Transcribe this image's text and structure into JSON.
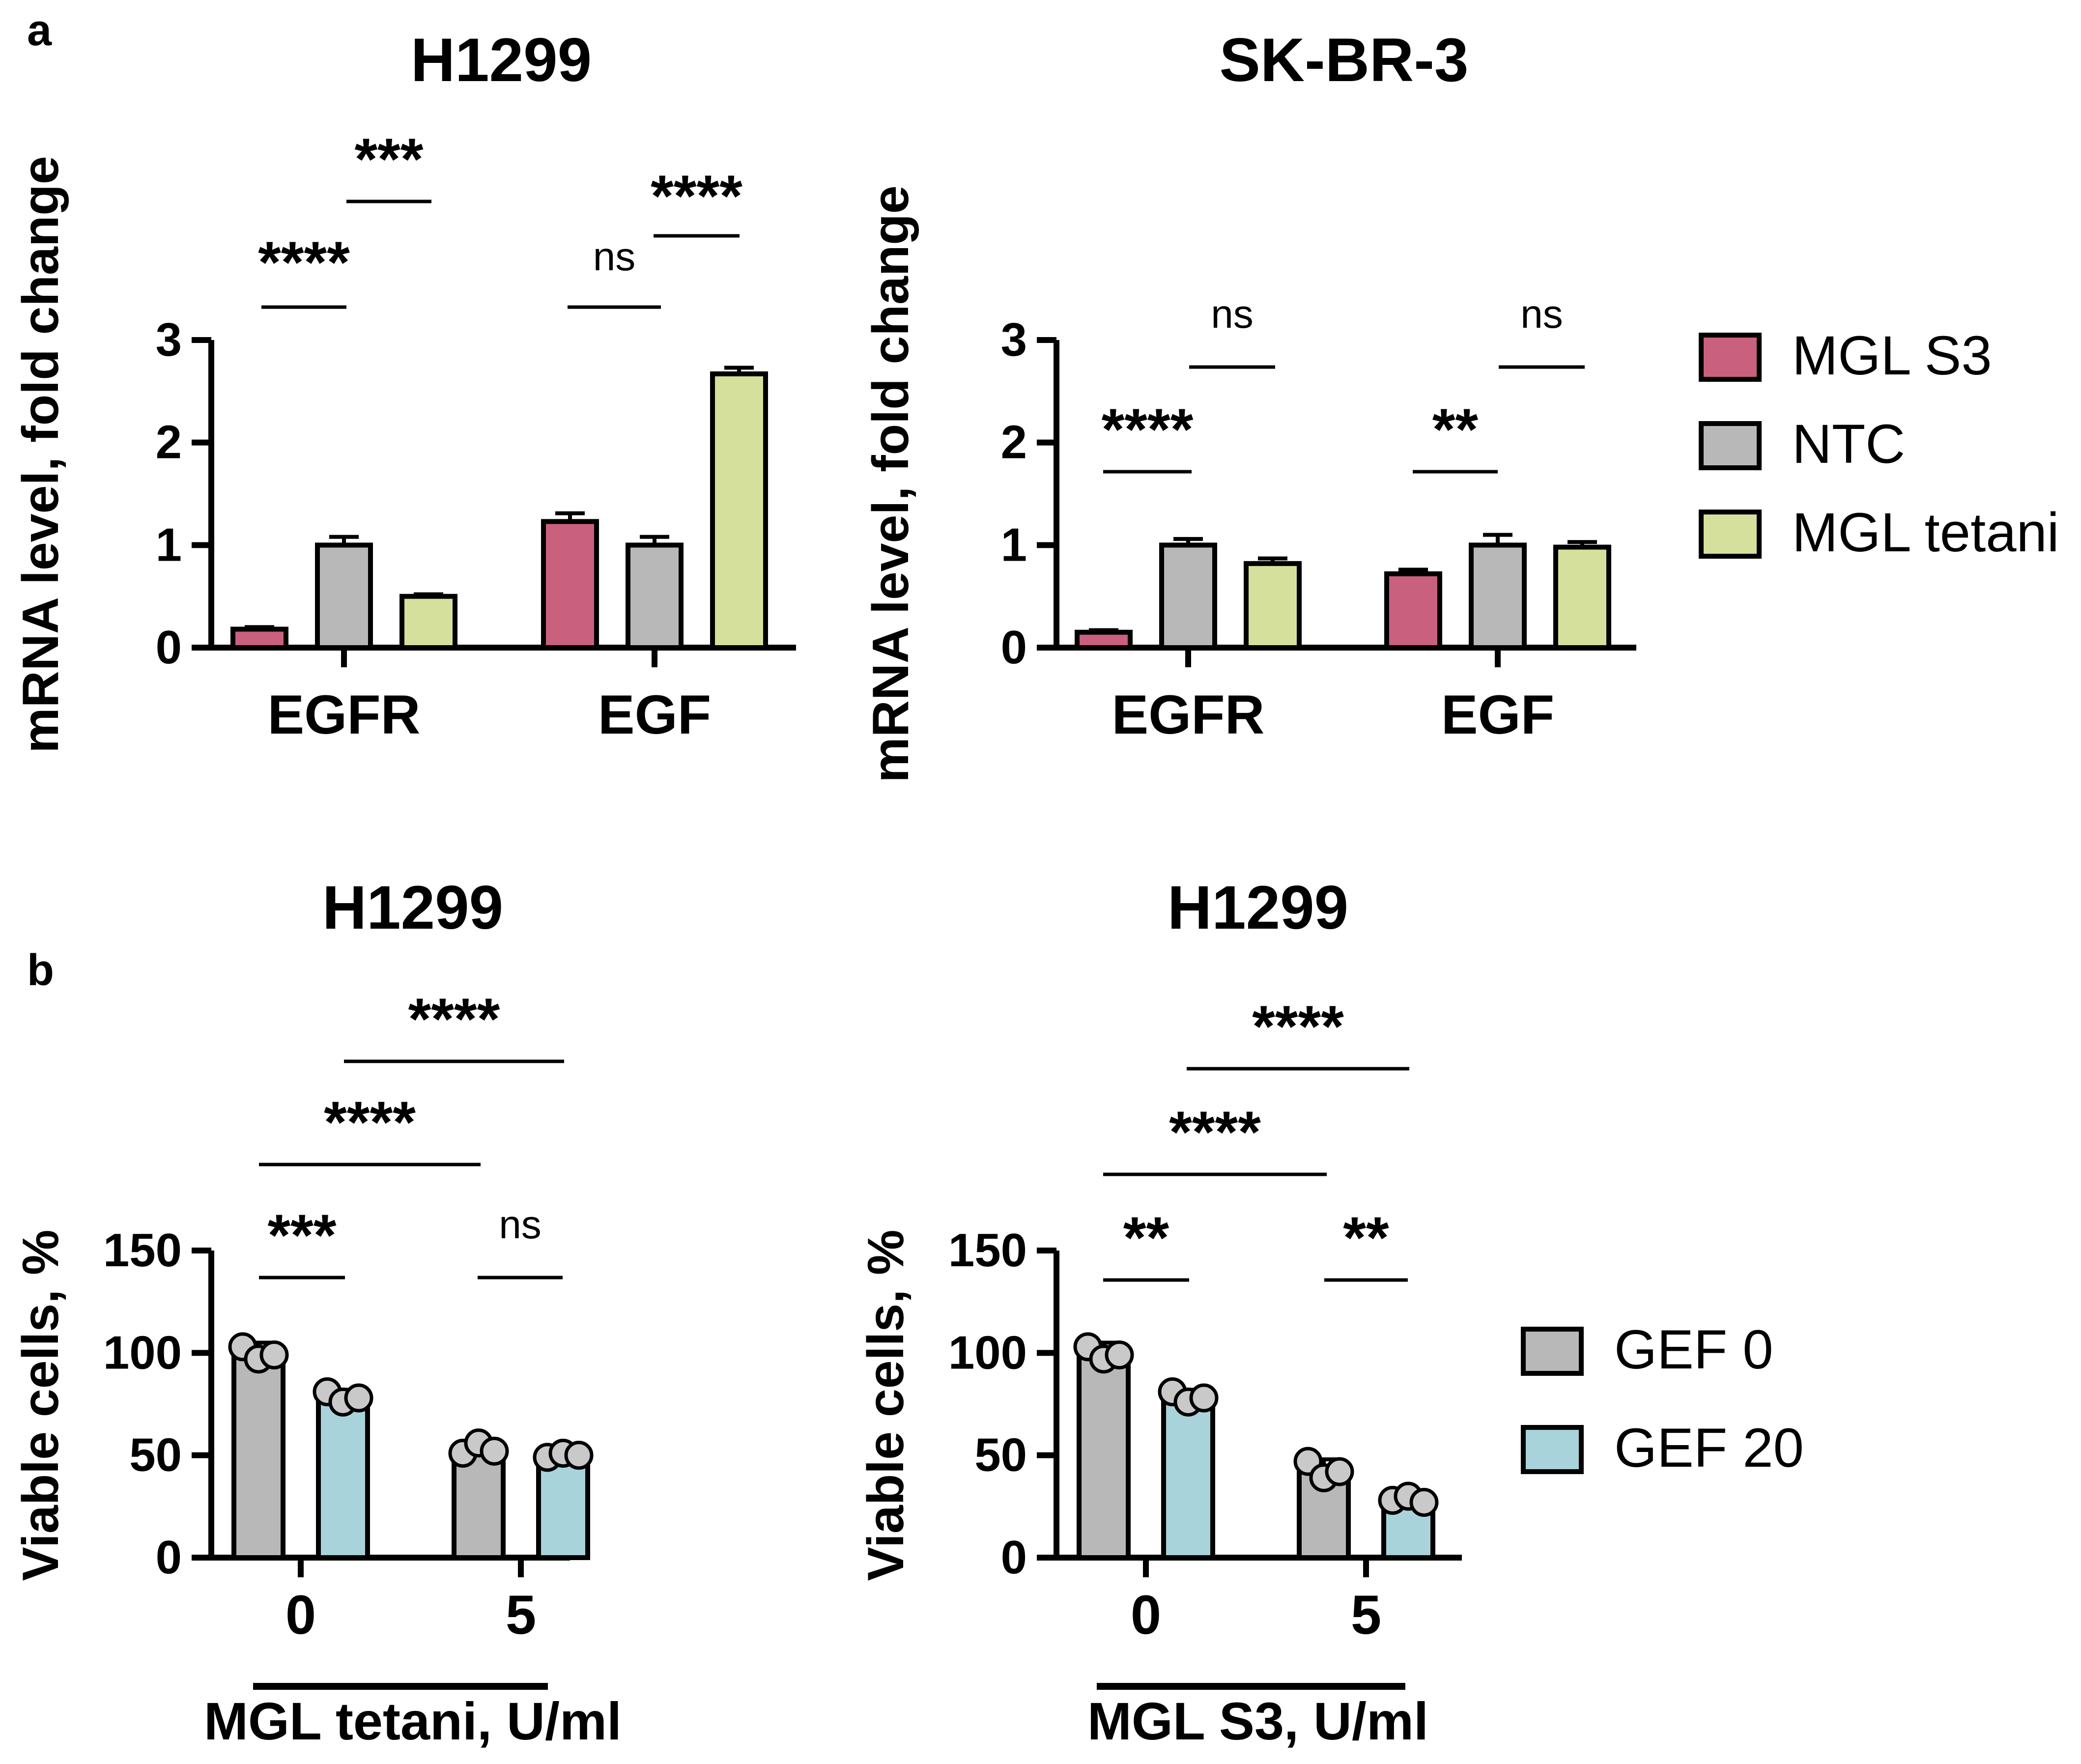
{
  "panel_labels": {
    "a": "a",
    "b": "b"
  },
  "chart_data": [
    {
      "id": "a1",
      "type": "bar",
      "title": "H1299",
      "ylabel": "mRNA level, fold change",
      "xlabel": "",
      "ylim": [
        0,
        3
      ],
      "yticks": [
        "0",
        "1",
        "2",
        "3"
      ],
      "categories": [
        "EGFR",
        "EGF"
      ],
      "series": [
        {
          "name": "MGL S3",
          "color": "#c9607e",
          "values": [
            0.18,
            1.23
          ],
          "errors": [
            0.02,
            0.08
          ]
        },
        {
          "name": "NTC",
          "color": "#b8b8b8",
          "values": [
            1.0,
            1.0
          ],
          "errors": [
            0.08,
            0.08
          ]
        },
        {
          "name": "MGL tetani",
          "color": "#d4e09b",
          "values": [
            0.5,
            2.67
          ],
          "errors": [
            0.02,
            0.06
          ]
        }
      ],
      "significance": [
        {
          "label": "****",
          "from": "EGFR:MGL S3",
          "to": "EGFR:NTC"
        },
        {
          "label": "***",
          "from": "EGFR:NTC",
          "to": "EGFR:MGL tetani"
        },
        {
          "label": "ns",
          "from": "EGF:MGL S3",
          "to": "EGF:NTC"
        },
        {
          "label": "****",
          "from": "EGF:NTC",
          "to": "EGF:MGL tetani"
        }
      ]
    },
    {
      "id": "a2",
      "type": "bar",
      "title": "SK-BR-3",
      "ylabel": "mRNA level, fold change",
      "xlabel": "",
      "ylim": [
        0,
        3
      ],
      "yticks": [
        "0",
        "1",
        "2",
        "3"
      ],
      "categories": [
        "EGFR",
        "EGF"
      ],
      "series": [
        {
          "name": "MGL S3",
          "color": "#c9607e",
          "values": [
            0.15,
            0.72
          ],
          "errors": [
            0.02,
            0.04
          ]
        },
        {
          "name": "NTC",
          "color": "#b8b8b8",
          "values": [
            1.0,
            1.0
          ],
          "errors": [
            0.06,
            0.1
          ]
        },
        {
          "name": "MGL tetani",
          "color": "#d4e09b",
          "values": [
            0.82,
            0.98
          ],
          "errors": [
            0.05,
            0.05
          ]
        }
      ],
      "significance": [
        {
          "label": "****",
          "from": "EGFR:MGL S3",
          "to": "EGFR:NTC"
        },
        {
          "label": "ns",
          "from": "EGFR:NTC",
          "to": "EGFR:MGL tetani"
        },
        {
          "label": "**",
          "from": "EGF:MGL S3",
          "to": "EGF:NTC"
        },
        {
          "label": "ns",
          "from": "EGF:NTC",
          "to": "EGF:MGL tetani"
        }
      ],
      "legend": [
        "MGL S3",
        "NTC",
        "MGL tetani"
      ]
    },
    {
      "id": "b1",
      "type": "bar",
      "title": "H1299",
      "ylabel": "Viable cells, %",
      "xlabel": "MGL tetani, U/ml",
      "ylim": [
        0,
        150
      ],
      "yticks": [
        "0",
        "50",
        "100",
        "150"
      ],
      "categories": [
        "0",
        "5"
      ],
      "series": [
        {
          "name": "GEF 0",
          "color": "#b8b8b8",
          "values": [
            100,
            53
          ],
          "errors": [
            5,
            4
          ],
          "points": [
            [
              103,
              97,
              99
            ],
            [
              51,
              56,
              52
            ]
          ]
        },
        {
          "name": "GEF 20",
          "color": "#a9d3da",
          "values": [
            78,
            50
          ],
          "errors": [
            4,
            2
          ],
          "points": [
            [
              81,
              76,
              78
            ],
            [
              49,
              51,
              50
            ]
          ]
        }
      ],
      "significance": [
        {
          "label": "***",
          "from": "0:GEF 0",
          "to": "0:GEF 20"
        },
        {
          "label": "ns",
          "from": "5:GEF 0",
          "to": "5:GEF 20"
        },
        {
          "label": "****",
          "from": "0:GEF 0",
          "to": "5:GEF 0"
        },
        {
          "label": "****",
          "from": "0:GEF 20",
          "to": "5:GEF 20"
        }
      ]
    },
    {
      "id": "b2",
      "type": "bar",
      "title": "H1299",
      "ylabel": "Viable cells, %",
      "xlabel": "MGL S3, U/ml",
      "ylim": [
        0,
        150
      ],
      "yticks": [
        "0",
        "50",
        "100",
        "150"
      ],
      "categories": [
        "0",
        "5"
      ],
      "series": [
        {
          "name": "GEF 0",
          "color": "#b8b8b8",
          "values": [
            100,
            43
          ],
          "errors": [
            5,
            5
          ],
          "points": [
            [
              103,
              97,
              99
            ],
            [
              47,
              39,
              42
            ]
          ]
        },
        {
          "name": "GEF 20",
          "color": "#a9d3da",
          "values": [
            78,
            28
          ],
          "errors": [
            4,
            2
          ],
          "points": [
            [
              81,
              76,
              78
            ],
            [
              28,
              30,
              27
            ]
          ]
        }
      ],
      "significance": [
        {
          "label": "**",
          "from": "0:GEF 0",
          "to": "0:GEF 20"
        },
        {
          "label": "**",
          "from": "5:GEF 0",
          "to": "5:GEF 20"
        },
        {
          "label": "****",
          "from": "0:GEF 0",
          "to": "5:GEF 0"
        },
        {
          "label": "****",
          "from": "0:GEF 20",
          "to": "5:GEF 20"
        }
      ],
      "legend": [
        "GEF 0",
        "GEF 20"
      ]
    }
  ]
}
